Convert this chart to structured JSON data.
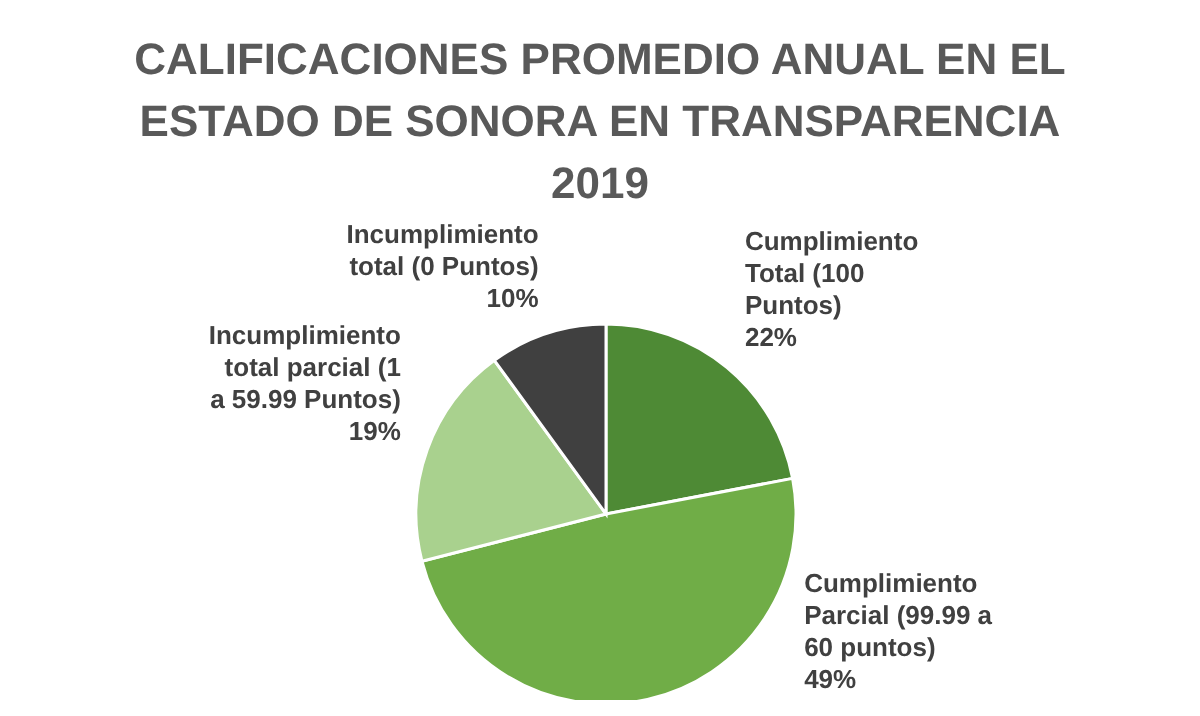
{
  "chart_data": {
    "type": "pie",
    "title": "CALIFICACIONES PROMEDIO ANUAL EN EL ESTADO DE SONORA EN TRANSPARENCIA 2019",
    "categories": [
      "Cumplimiento Total (100 Puntos)",
      "Cumplimiento Parcial (99.99 a 60 puntos)",
      "Incumplimiento total parcial (1 a 59.99 Puntos)",
      "Incumplimiento total (0 Puntos)"
    ],
    "values": [
      22,
      49,
      19,
      10
    ],
    "colors": [
      "#4e8a35",
      "#70ad47",
      "#a9d18e",
      "#404040"
    ],
    "value_labels": [
      "22%",
      "49%",
      "19%",
      "10%"
    ],
    "legend": false
  }
}
